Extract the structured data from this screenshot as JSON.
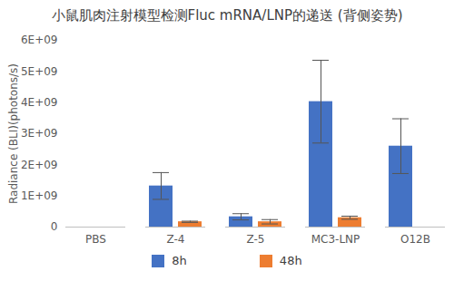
{
  "chart_data": {
    "type": "bar",
    "title": "小鼠肌肉注射模型检测Fluc mRNA/LNP的递送 (背侧姿势)",
    "y_label": "Radiance (BLI)(photons/s)",
    "categories": [
      "PBS",
      "Z-4",
      "Z-5",
      "MC3-LNP",
      "O12B"
    ],
    "series": [
      {
        "name": "8h",
        "color": "#4472c4",
        "values": [
          0,
          1320000000,
          330000000,
          4030000000,
          2600000000
        ],
        "errors": [
          0,
          430000000,
          100000000,
          1330000000,
          880000000
        ]
      },
      {
        "name": "48h",
        "color": "#ed7d31",
        "values": [
          0,
          170000000,
          170000000,
          300000000,
          0
        ],
        "errors": [
          0,
          20000000,
          70000000,
          50000000,
          0
        ]
      }
    ],
    "ylim": [
      0,
      6000000000
    ],
    "yticks": [
      0,
      {
        "value": 1000000000,
        "label": "1E+09"
      },
      {
        "value": 2000000000,
        "label": "2E+09"
      },
      {
        "value": 3000000000,
        "label": "3E+09"
      },
      {
        "value": 4000000000,
        "label": "4E+09"
      },
      {
        "value": 5000000000,
        "label": "5E+09"
      },
      {
        "value": 6000000000,
        "label": "6E+09"
      }
    ],
    "grid": false,
    "legend": "bottom"
  }
}
